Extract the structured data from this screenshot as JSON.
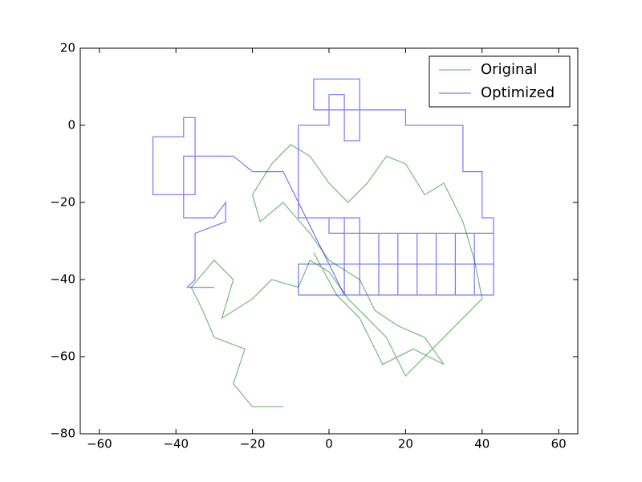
{
  "chart_data": {
    "type": "line",
    "xlim": [
      -65,
      65
    ],
    "ylim": [
      -80,
      20
    ],
    "xticks": [
      {
        "value": -60,
        "label": "−60"
      },
      {
        "value": -40,
        "label": "−40"
      },
      {
        "value": -20,
        "label": "−20"
      },
      0,
      20,
      40,
      60
    ],
    "yticks": [
      {
        "value": -80,
        "label": "−80"
      },
      {
        "value": -60,
        "label": "−60"
      },
      {
        "value": -40,
        "label": "−40"
      },
      {
        "value": -20,
        "label": "−20"
      },
      0,
      20
    ],
    "legend": "upper right",
    "series": [
      {
        "name": "Original",
        "color": "#008000",
        "x": [
          -12,
          -20,
          -25,
          -22,
          -30,
          -33,
          -36,
          -30,
          -25,
          -28,
          -20,
          -15,
          -8,
          -5,
          0,
          5,
          10,
          15,
          20,
          25,
          30,
          35,
          40,
          38,
          35,
          30,
          25,
          20,
          15,
          10,
          5,
          0,
          -5,
          -10,
          -15,
          -20,
          -18,
          -12,
          -5,
          0,
          8,
          12,
          18,
          25,
          30,
          22,
          14,
          8,
          2,
          -4
        ],
        "values": [
          -73,
          -73,
          -67,
          -58,
          -55,
          -48,
          -42,
          -35,
          -40,
          -50,
          -45,
          -40,
          -42,
          -35,
          -38,
          -45,
          -50,
          -55,
          -65,
          -60,
          -55,
          -50,
          -45,
          -35,
          -25,
          -15,
          -18,
          -10,
          -8,
          -15,
          -20,
          -15,
          -8,
          -5,
          -10,
          -18,
          -25,
          -20,
          -28,
          -35,
          -40,
          -48,
          -52,
          -55,
          -62,
          -58,
          -62,
          -50,
          -44,
          -33
        ]
      },
      {
        "name": "Optimized",
        "color": "#0000ff",
        "x": [
          43,
          -8,
          -8,
          43,
          43,
          0,
          0,
          4,
          4,
          8,
          8,
          -8,
          -8,
          0,
          0,
          4,
          4,
          8,
          8,
          -4,
          -4,
          8,
          8,
          20,
          20,
          35,
          35,
          40,
          40,
          43,
          43,
          38,
          38,
          33,
          33,
          28,
          28,
          23,
          23,
          18,
          18,
          13,
          13,
          4,
          -12,
          -20,
          -25,
          -35,
          -35,
          -46,
          -46,
          -38,
          -38,
          -35,
          -35,
          -38,
          -38,
          -30,
          -27,
          -27,
          -35,
          -35,
          -37,
          -30
        ],
        "values": [
          -44,
          -44,
          -36,
          -36,
          -28,
          -28,
          -24,
          -24,
          -44,
          -44,
          -24,
          -24,
          0,
          0,
          8,
          8,
          -4,
          -4,
          4,
          4,
          12,
          12,
          4,
          4,
          0,
          0,
          -12,
          -12,
          -24,
          -24,
          -44,
          -44,
          -28,
          -28,
          -44,
          -44,
          -28,
          -28,
          -44,
          -44,
          -28,
          -28,
          -44,
          -44,
          -12,
          -12,
          -8,
          -8,
          -18,
          -18,
          -3,
          -3,
          2,
          2,
          -8,
          -8,
          -24,
          -24,
          -20,
          -25,
          -28,
          -40,
          -42,
          -42
        ]
      }
    ]
  }
}
